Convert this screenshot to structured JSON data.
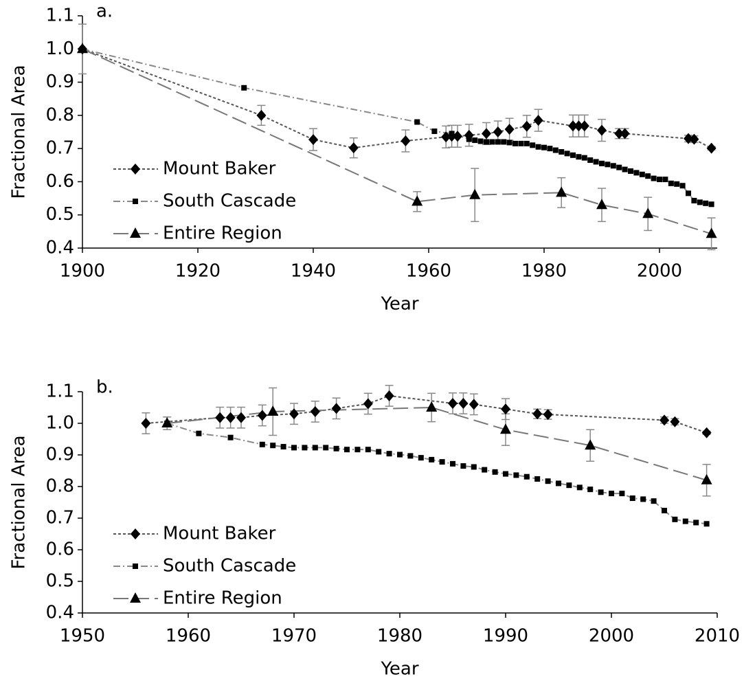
{
  "chart_data": [
    {
      "type": "line",
      "annotation": "a.",
      "x_label": "Year",
      "y_label": "Fractional Area",
      "xlim": [
        1900,
        2010
      ],
      "xticks": [
        1900,
        1920,
        1940,
        1960,
        1980,
        2000
      ],
      "ylim": [
        0.4,
        1.1
      ],
      "yticks": [
        0.4,
        0.5,
        0.6,
        0.7,
        0.8,
        0.9,
        {
          "value": 1.0,
          "label": "1.0"
        },
        1.1
      ],
      "legend": "lower left",
      "series": [
        {
          "name": "Mount Baker",
          "color": "#555555",
          "marker": "diamond",
          "dash": "4 3",
          "x": [
            1900,
            1931,
            1940,
            1947,
            1956,
            1963,
            1964,
            1965,
            1967,
            1970,
            1972,
            1974,
            1977,
            1979,
            1985,
            1986,
            1987,
            1990,
            1993,
            1994,
            2005,
            2006,
            2009
          ],
          "values": [
            1.0,
            0.8,
            0.727,
            0.702,
            0.723,
            0.735,
            0.737,
            0.737,
            0.74,
            0.745,
            0.75,
            0.758,
            0.767,
            0.785,
            0.768,
            0.768,
            0.768,
            0.755,
            0.745,
            0.745,
            0.73,
            0.728,
            0.701
          ],
          "errors": [
            null,
            0.03,
            0.033,
            0.03,
            0.033,
            0.033,
            0.033,
            0.033,
            0.033,
            0.033,
            0.033,
            0.033,
            0.033,
            0.033,
            0.033,
            0.033,
            0.033,
            0.033,
            0.015,
            0.015,
            0.01,
            0.01,
            0.005
          ]
        },
        {
          "name": "South Cascade",
          "color": "#888888",
          "marker": "square",
          "dash": "10 4 2 4",
          "x": [
            1900,
            1928,
            1958,
            1961,
            1964,
            1967,
            1968,
            1969,
            1970,
            1971,
            1972,
            1973,
            1974,
            1975,
            1976,
            1977,
            1978,
            1979,
            1980,
            1981,
            1982,
            1983,
            1984,
            1985,
            1986,
            1987,
            1988,
            1989,
            1990,
            1991,
            1992,
            1993,
            1994,
            1995,
            1996,
            1997,
            1998,
            1999,
            2000,
            2001,
            2002,
            2003,
            2004,
            2005,
            2006,
            2007,
            2008,
            2009
          ],
          "values": [
            1.0,
            0.883,
            0.78,
            0.752,
            0.745,
            0.728,
            0.725,
            0.722,
            0.72,
            0.72,
            0.72,
            0.72,
            0.718,
            0.715,
            0.715,
            0.715,
            0.71,
            0.705,
            0.703,
            0.7,
            0.695,
            0.69,
            0.685,
            0.68,
            0.675,
            0.672,
            0.665,
            0.66,
            0.655,
            0.652,
            0.648,
            0.643,
            0.637,
            0.632,
            0.627,
            0.622,
            0.617,
            0.61,
            0.607,
            0.607,
            0.595,
            0.593,
            0.588,
            0.565,
            0.543,
            0.538,
            0.535,
            0.532
          ]
        },
        {
          "name": "Entire Region",
          "color": "#777777",
          "marker": "triangle",
          "dash": "22 8",
          "x": [
            1900,
            1958,
            1968,
            1983,
            1990,
            1998,
            2009
          ],
          "values": [
            1.0,
            0.54,
            0.56,
            0.567,
            0.53,
            0.503,
            0.443
          ],
          "errors": [
            0.075,
            0.03,
            0.08,
            0.045,
            0.05,
            0.05,
            0.048
          ]
        }
      ]
    },
    {
      "type": "line",
      "annotation": "b.",
      "x_label": "Year",
      "y_label": "Fractional Area",
      "xlim": [
        1950,
        2010
      ],
      "xticks": [
        1950,
        1960,
        1970,
        1980,
        1990,
        2000,
        2010
      ],
      "ylim": [
        0.4,
        1.1
      ],
      "yticks": [
        0.4,
        0.5,
        0.6,
        0.7,
        0.8,
        0.9,
        {
          "value": 1.0,
          "label": "1.0"
        },
        1.1
      ],
      "legend": "lower left",
      "series": [
        {
          "name": "Mount Baker",
          "color": "#555555",
          "marker": "diamond",
          "dash": "4 3",
          "x": [
            1956,
            1963,
            1964,
            1965,
            1967,
            1970,
            1972,
            1974,
            1977,
            1979,
            1985,
            1986,
            1987,
            1990,
            1993,
            1994,
            2005,
            2006,
            2009
          ],
          "values": [
            1.0,
            1.018,
            1.018,
            1.018,
            1.025,
            1.03,
            1.037,
            1.047,
            1.062,
            1.087,
            1.063,
            1.063,
            1.06,
            1.045,
            1.03,
            1.028,
            1.01,
            1.005,
            0.97
          ],
          "errors": [
            0.033,
            0.033,
            0.033,
            0.033,
            0.033,
            0.033,
            0.033,
            0.033,
            0.033,
            0.033,
            0.033,
            0.033,
            0.033,
            0.033,
            0.015,
            0.015,
            0.01,
            0.01,
            0.005
          ]
        },
        {
          "name": "South Cascade",
          "color": "#888888",
          "marker": "square",
          "dash": "10 4 2 4",
          "x": [
            1958,
            1961,
            1964,
            1967,
            1968,
            1969,
            1970,
            1971,
            1972,
            1973,
            1974,
            1975,
            1976,
            1977,
            1978,
            1979,
            1980,
            1981,
            1982,
            1983,
            1984,
            1985,
            1986,
            1987,
            1988,
            1989,
            1990,
            1991,
            1992,
            1993,
            1994,
            1995,
            1996,
            1997,
            1998,
            1999,
            2000,
            2001,
            2002,
            2003,
            2004,
            2005,
            2006,
            2007,
            2008,
            2009
          ],
          "values": [
            1.0,
            0.968,
            0.955,
            0.933,
            0.93,
            0.926,
            0.923,
            0.923,
            0.923,
            0.923,
            0.92,
            0.917,
            0.917,
            0.917,
            0.91,
            0.904,
            0.901,
            0.897,
            0.891,
            0.885,
            0.878,
            0.872,
            0.865,
            0.862,
            0.853,
            0.846,
            0.84,
            0.836,
            0.831,
            0.824,
            0.817,
            0.81,
            0.804,
            0.797,
            0.791,
            0.782,
            0.778,
            0.778,
            0.763,
            0.76,
            0.754,
            0.724,
            0.696,
            0.69,
            0.686,
            0.682
          ]
        },
        {
          "name": "Entire Region",
          "color": "#777777",
          "marker": "triangle",
          "dash": "22 8",
          "x": [
            1958,
            1968,
            1983,
            1990,
            1998,
            2009
          ],
          "values": [
            1.0,
            1.037,
            1.05,
            0.98,
            0.93,
            0.82
          ],
          "errors": [
            0.02,
            0.075,
            0.045,
            0.05,
            0.05,
            0.05
          ]
        }
      ]
    }
  ]
}
